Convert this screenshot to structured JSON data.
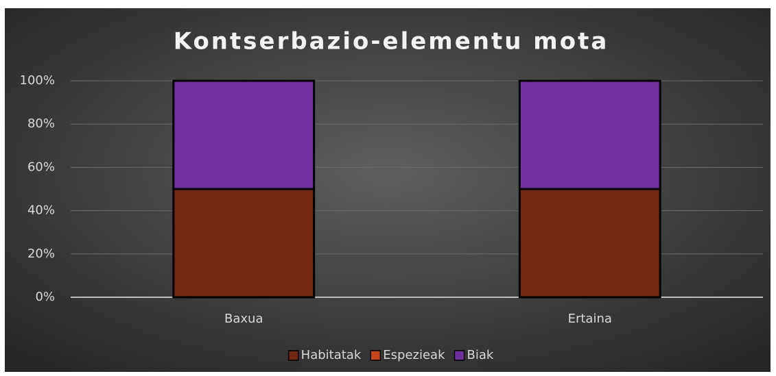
{
  "chart_data": {
    "type": "stacked_bar_100",
    "title": "Kontserbazio-elementu mota",
    "categories": [
      "Baxua",
      "Ertaina"
    ],
    "series": [
      {
        "name": "Habitatak",
        "color": "#742711",
        "values": [
          50,
          50
        ]
      },
      {
        "name": "Espezieak",
        "color": "#c8441c",
        "values": [
          0,
          0
        ]
      },
      {
        "name": "Biak",
        "color": "#7030a0",
        "values": [
          50,
          50
        ]
      }
    ],
    "ylim": [
      0,
      100
    ],
    "yticks": [
      {
        "value": 0,
        "label": "0%"
      },
      {
        "value": 20,
        "label": "20%"
      },
      {
        "value": 40,
        "label": "40%"
      },
      {
        "value": 60,
        "label": "60%"
      },
      {
        "value": 80,
        "label": "80%"
      },
      {
        "value": 100,
        "label": "100%"
      }
    ],
    "grid": true,
    "legend": "bottom"
  }
}
